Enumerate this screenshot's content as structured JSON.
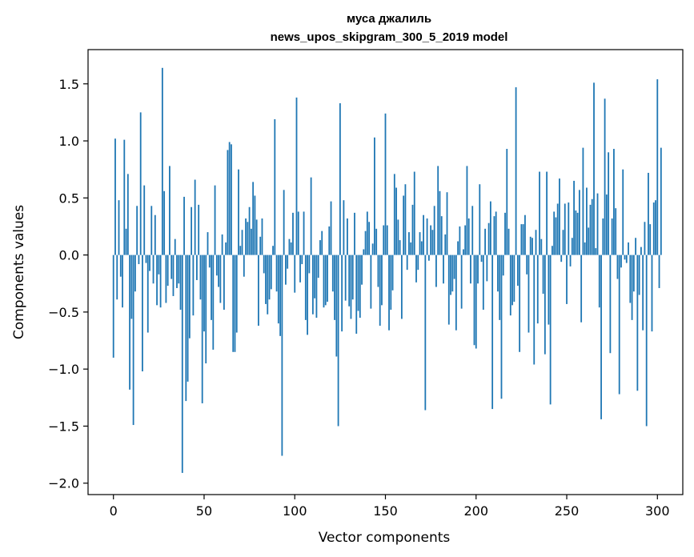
{
  "chart_data": {
    "type": "bar",
    "title": "муса джалиль",
    "subtitle": "news_upos_skipgram_300_5_2019 model",
    "xlabel": "Vector components",
    "ylabel": "Components values",
    "xlim": [
      -14,
      314
    ],
    "ylim": [
      -2.1,
      1.8
    ],
    "xticks": [
      0,
      50,
      100,
      150,
      200,
      250,
      300
    ],
    "yticks": [
      -2.0,
      -1.5,
      -1.0,
      -0.5,
      0.0,
      0.5,
      1.0,
      1.5
    ],
    "ytick_labels": [
      "−2.0",
      "−1.5",
      "−1.0",
      "−0.5",
      "0.0",
      "0.5",
      "1.0",
      "1.5"
    ],
    "grid": false,
    "bar_color": "#1f77b4",
    "x_start": 0,
    "values": [
      -0.9,
      1.02,
      -0.39,
      0.48,
      -0.19,
      -0.46,
      1.01,
      0.23,
      0.71,
      -1.18,
      -0.56,
      -1.49,
      -0.32,
      0.43,
      -0.08,
      1.25,
      -1.02,
      0.61,
      -0.07,
      -0.68,
      -0.14,
      0.43,
      -0.25,
      0.35,
      -0.44,
      -0.17,
      -0.46,
      1.64,
      0.56,
      -0.42,
      -0.27,
      0.78,
      -0.21,
      -0.36,
      0.14,
      -0.29,
      -0.25,
      -0.48,
      -1.91,
      0.51,
      -1.28,
      -1.11,
      -0.73,
      0.42,
      -0.53,
      0.66,
      -0.22,
      0.44,
      -0.39,
      -1.3,
      -0.67,
      -0.95,
      0.2,
      -0.11,
      -0.57,
      -0.83,
      0.61,
      -0.18,
      -0.28,
      -0.42,
      0.18,
      -0.48,
      0.11,
      0.92,
      0.99,
      0.97,
      -0.85,
      -0.85,
      -0.68,
      0.75,
      0.08,
      0.22,
      -0.19,
      0.32,
      0.29,
      0.42,
      0.23,
      0.64,
      0.52,
      0.31,
      -0.62,
      0.16,
      0.32,
      -0.16,
      -0.43,
      -0.52,
      -0.39,
      -0.3,
      0.08,
      1.19,
      -0.32,
      -0.6,
      -0.71,
      -1.76,
      0.57,
      -0.26,
      -0.12,
      0.14,
      0.11,
      0.37,
      -0.33,
      1.38,
      0.38,
      -0.24,
      -0.08,
      0.38,
      -0.57,
      -0.7,
      -0.16,
      0.68,
      -0.52,
      -0.38,
      -0.55,
      -0.2,
      0.13,
      0.21,
      -0.46,
      -0.44,
      -0.41,
      0.25,
      0.47,
      -0.32,
      -0.57,
      -0.89,
      -1.5,
      1.33,
      -0.67,
      0.48,
      -0.4,
      0.32,
      -0.45,
      -0.56,
      -0.39,
      0.37,
      -0.69,
      -0.49,
      -0.55,
      -0.26,
      0.05,
      0.21,
      0.38,
      0.29,
      -0.47,
      0.1,
      1.03,
      0.23,
      -0.28,
      -0.62,
      -0.44,
      0.26,
      1.24,
      0.26,
      -0.66,
      -0.48,
      -0.31,
      0.71,
      0.59,
      0.31,
      0.13,
      -0.56,
      0.52,
      0.62,
      -0.13,
      0.2,
      0.11,
      0.44,
      0.73,
      -0.24,
      -0.13,
      0.2,
      0.12,
      0.35,
      -1.36,
      0.32,
      -0.05,
      0.26,
      0.22,
      0.43,
      -0.28,
      0.78,
      0.56,
      0.34,
      -0.25,
      0.18,
      0.55,
      -0.61,
      -0.35,
      -0.32,
      -0.21,
      -0.66,
      0.12,
      0.25,
      -0.47,
      0.05,
      0.26,
      0.78,
      0.32,
      -0.25,
      0.43,
      -0.79,
      -0.82,
      -0.25,
      0.62,
      -0.06,
      -0.48,
      0.23,
      -0.23,
      0.28,
      0.47,
      -1.35,
      0.34,
      0.38,
      -0.32,
      -0.57,
      -1.26,
      -0.18,
      0.37,
      0.93,
      0.23,
      -0.53,
      -0.44,
      -0.41,
      1.47,
      -0.27,
      -0.85,
      0.27,
      0.27,
      0.35,
      -0.17,
      -0.68,
      0.16,
      0.15,
      -0.96,
      0.22,
      -0.6,
      0.73,
      0.14,
      -0.34,
      -0.87,
      0.73,
      -0.61,
      -1.31,
      0.08,
      0.38,
      0.33,
      0.45,
      0.67,
      -0.06,
      0.22,
      0.45,
      -0.43,
      0.46,
      -0.1,
      0.15,
      0.65,
      0.39,
      0.37,
      0.57,
      -0.59,
      0.94,
      0.11,
      0.59,
      0.24,
      0.44,
      0.49,
      1.51,
      0.06,
      0.54,
      -0.46,
      -1.44,
      0.32,
      1.37,
      0.53,
      0.9,
      -0.86,
      0.32,
      0.93,
      0.41,
      -0.21,
      -1.22,
      -0.11,
      0.75,
      -0.04,
      -0.07,
      0.11,
      -0.42,
      -0.57,
      -0.32,
      0.15,
      -1.19,
      -0.35,
      0.07,
      -0.66,
      0.29,
      -1.5,
      0.72,
      0.27,
      -0.67,
      0.46,
      0.48,
      1.54,
      -0.29,
      0.94
    ]
  }
}
